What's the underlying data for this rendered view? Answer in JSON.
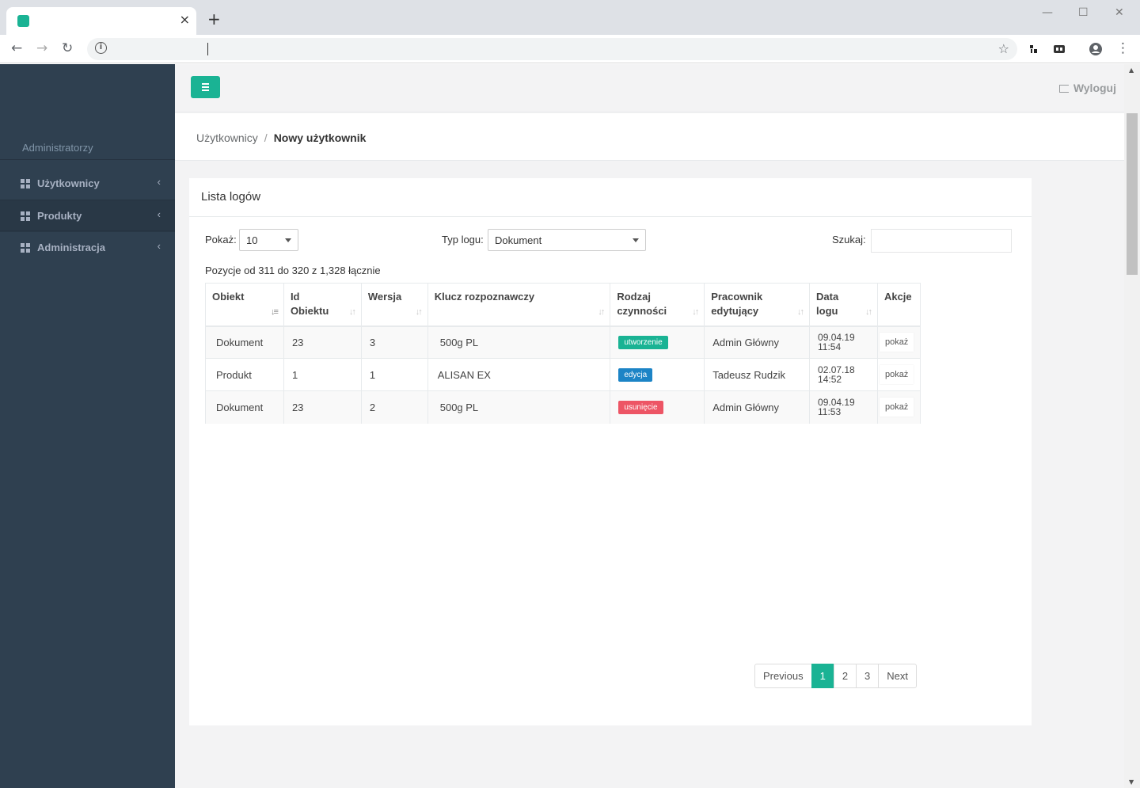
{
  "browser": {
    "tab_title": "",
    "new_tab": "+",
    "tab_close": "×",
    "win_min": "—",
    "win_max": "☐",
    "win_close": "✕",
    "back": "←",
    "forward": "→",
    "reload": "↻",
    "info": "i",
    "star": "☆",
    "menu": "⋮"
  },
  "sidebar": {
    "role": "Administratorzy",
    "items": [
      {
        "label": "Użytkownicy",
        "arrow": "‹"
      },
      {
        "label": "Produkty",
        "arrow": "‹"
      },
      {
        "label": "Administracja",
        "arrow": "‹"
      }
    ]
  },
  "topnav": {
    "logout_label": "Wyloguj"
  },
  "breadcrumb": {
    "parent": "Użytkownicy",
    "separator": "/",
    "current": "Nowy użytkownik"
  },
  "card": {
    "title": "Lista logów",
    "show_label": "Pokaż:",
    "show_value": "10",
    "type_label": "Typ logu:",
    "type_value": "Dokument",
    "search_label": "Szukaj:",
    "search_value": "",
    "info": "Pozycje od 311 do 320 z 1,328 łącznie"
  },
  "table": {
    "headers": [
      {
        "line1": "Obiekt",
        "line2": ""
      },
      {
        "line1": "Id",
        "line2": "Obiektu"
      },
      {
        "line1": "Wersja",
        "line2": ""
      },
      {
        "line1": "Klucz rozpoznawczy",
        "line2": ""
      },
      {
        "line1": "Rodzaj",
        "line2": "czynności"
      },
      {
        "line1": "Pracownik",
        "line2": "edytujący"
      },
      {
        "line1": "Data",
        "line2": "logu"
      },
      {
        "line1": "Akcje",
        "line2": ""
      }
    ],
    "rows": [
      {
        "obiekt": "Dokument",
        "id": "23",
        "wersja": "3",
        "klucz": "500g PL",
        "rodzaj": "utworzenie",
        "rodzaj_color": "#1ab394",
        "pracownik": "Admin Główny",
        "date1": "09.04.19",
        "date2": "11:54",
        "akcja": "pokaż"
      },
      {
        "obiekt": "Produkt",
        "id": "1",
        "wersja": "1",
        "klucz": "ALISAN EX",
        "rodzaj": "edycja",
        "rodzaj_color": "#1c84c6",
        "pracownik": "Tadeusz Rudzik",
        "date1": "02.07.18",
        "date2": "14:52",
        "akcja": "pokaż"
      },
      {
        "obiekt": "Dokument",
        "id": "23",
        "wersja": "2",
        "klucz": "500g PL",
        "rodzaj": "usunięcie",
        "rodzaj_color": "#ed5565",
        "pracownik": "Admin Główny",
        "date1": "09.04.19",
        "date2": "11:53",
        "akcja": "pokaż"
      }
    ]
  },
  "pagination": {
    "previous": "Previous",
    "pages": [
      "1",
      "2",
      "3"
    ],
    "next": "Next"
  },
  "colors": {
    "accent": "#1ab394",
    "sidebar_bg": "#2f4050"
  }
}
